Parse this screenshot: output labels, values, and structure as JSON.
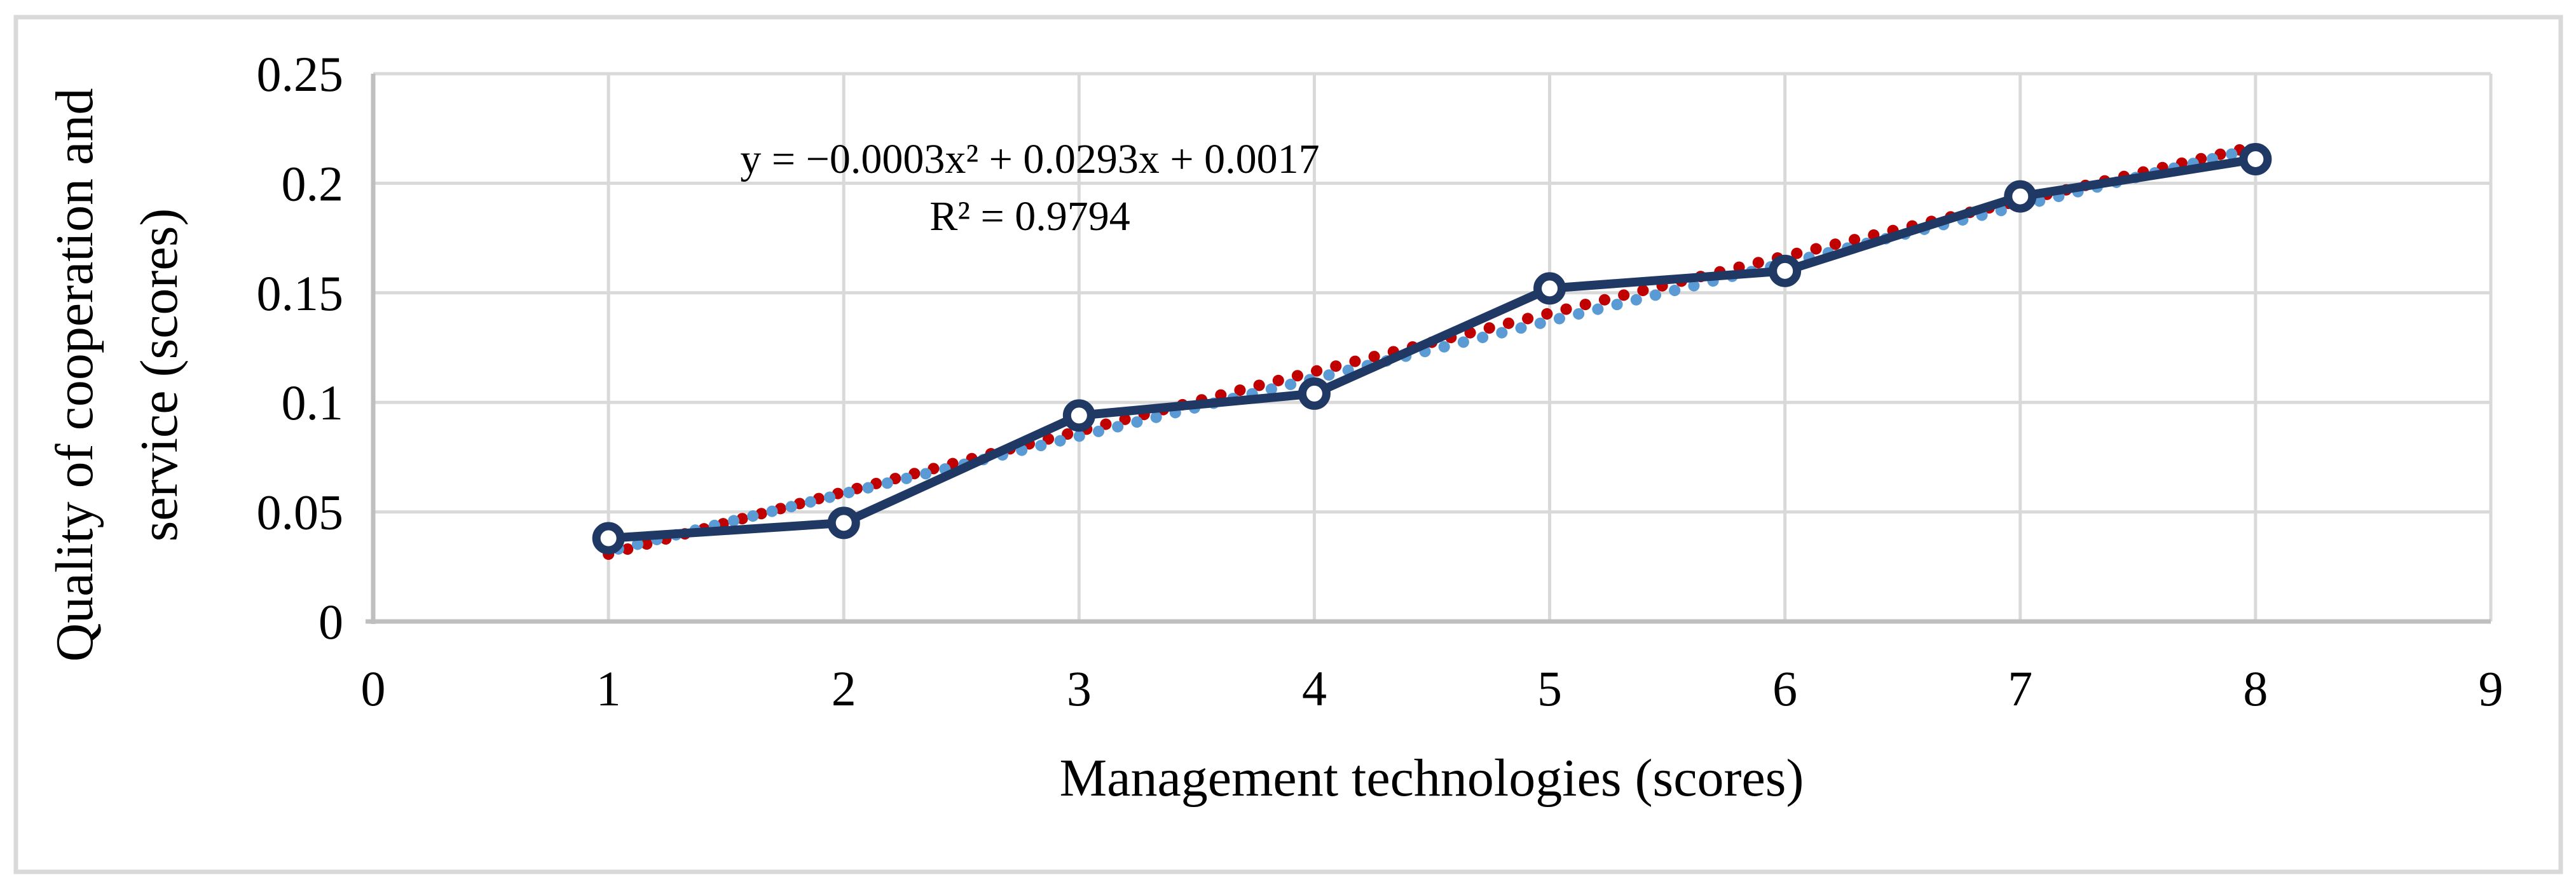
{
  "figure": {
    "background": "#ffffff",
    "border_color": "#d9d9d9"
  },
  "chart_data": {
    "type": "line",
    "title": "",
    "xlabel": "Management technologies (scores)",
    "ylabel_lines": [
      "Quality of cooperation and",
      "service (scores)"
    ],
    "xlim": [
      0,
      9
    ],
    "ylim": [
      0,
      0.25
    ],
    "grid": true,
    "legend": "none",
    "x_ticks": [
      {
        "v": 0,
        "label": "0"
      },
      {
        "v": 1,
        "label": "1"
      },
      {
        "v": 2,
        "label": "2"
      },
      {
        "v": 3,
        "label": "3"
      },
      {
        "v": 4,
        "label": "4"
      },
      {
        "v": 5,
        "label": "5"
      },
      {
        "v": 6,
        "label": "6"
      },
      {
        "v": 7,
        "label": "7"
      },
      {
        "v": 8,
        "label": "8"
      },
      {
        "v": 9,
        "label": "9"
      }
    ],
    "y_ticks": [
      {
        "v": 0,
        "label": "0"
      },
      {
        "v": 0.05,
        "label": "0.05"
      },
      {
        "v": 0.1,
        "label": "0.1"
      },
      {
        "v": 0.15,
        "label": "0.15"
      },
      {
        "v": 0.2,
        "label": "0.2"
      },
      {
        "v": 0.25,
        "label": "0.25"
      }
    ],
    "series": [
      {
        "name": "observed-data",
        "type": "line",
        "marker": "open-circle",
        "color": "#1f3864",
        "x": [
          1,
          2,
          3,
          4,
          5,
          6,
          7,
          8
        ],
        "values": [
          0.038,
          0.045,
          0.094,
          0.104,
          0.152,
          0.16,
          0.194,
          0.211
        ]
      },
      {
        "name": "polynomial-trendline",
        "type": "dotted",
        "color": "#c00000",
        "x_range": [
          1,
          8
        ],
        "coeffs": [
          -0.0003,
          0.0293,
          0.0017
        ]
      },
      {
        "name": "linear-trendline",
        "type": "dotted",
        "color": "#5b9bd5",
        "points": [
          [
            1,
            0.032
          ],
          [
            8,
            0.216
          ]
        ]
      }
    ],
    "annotation": {
      "equation": "y = −0.0003x² + 0.0293x + 0.0017",
      "r_squared": "R² = 0.9794"
    },
    "colors": {
      "gridline": "#d9d9d9",
      "axis": "#bfbfbf",
      "text": "#000000"
    }
  }
}
